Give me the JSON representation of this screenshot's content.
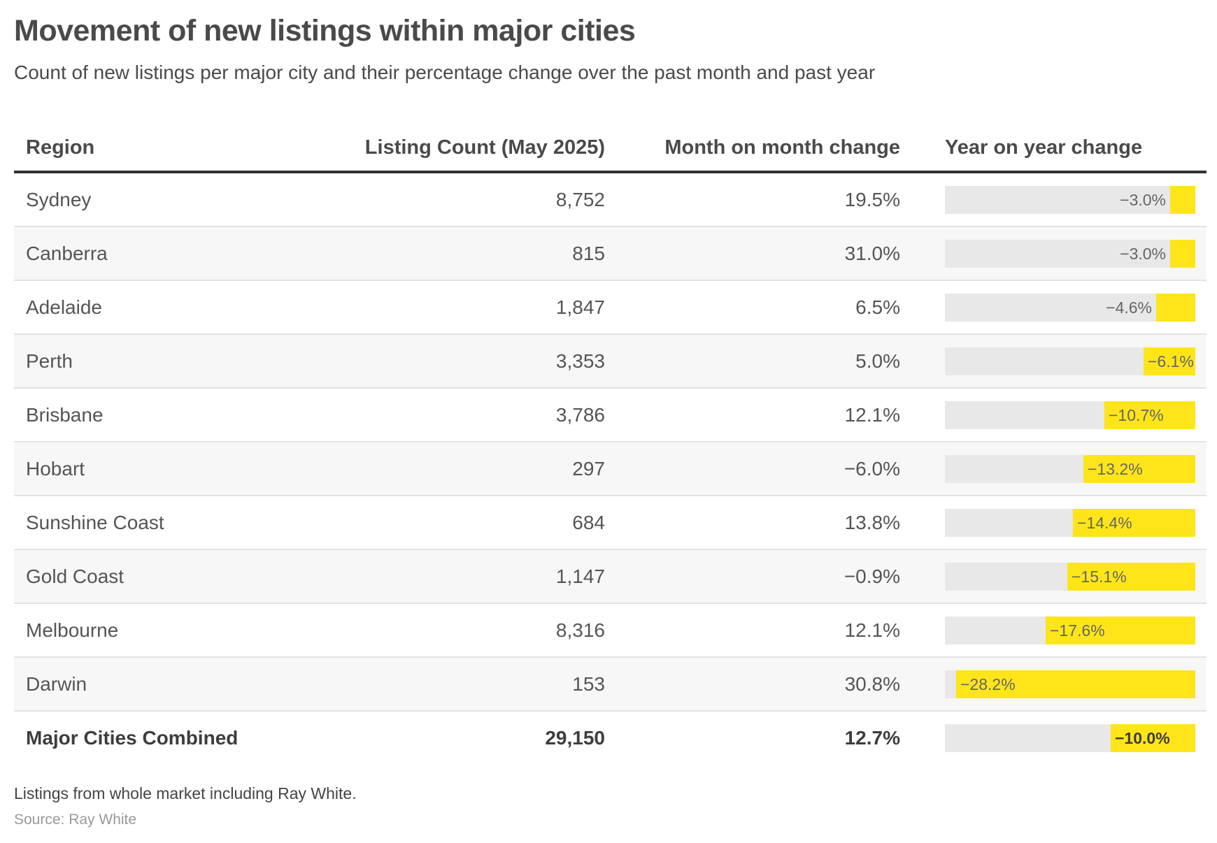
{
  "header": {
    "title": "Movement of new listings within major cities",
    "subtitle": "Count of new listings per major city and their percentage change over the past month and past year"
  },
  "columns": {
    "region": "Region",
    "count": "Listing Count (May 2025)",
    "mom": "Month on month change",
    "yoy": "Year on year change"
  },
  "chart_data": {
    "type": "table",
    "title": "Movement of new listings within major cities",
    "subtitle": "Count of new listings per major city and their percentage change over the past month and past year",
    "rows": [
      {
        "region": "Sydney",
        "count": "8,752",
        "mom": "19.5%",
        "yoy": "−3.0%",
        "yoy_value": -3.0
      },
      {
        "region": "Canberra",
        "count": "815",
        "mom": "31.0%",
        "yoy": "−3.0%",
        "yoy_value": -3.0
      },
      {
        "region": "Adelaide",
        "count": "1,847",
        "mom": "6.5%",
        "yoy": "−4.6%",
        "yoy_value": -4.6
      },
      {
        "region": "Perth",
        "count": "3,353",
        "mom": "5.0%",
        "yoy": "−6.1%",
        "yoy_value": -6.1
      },
      {
        "region": "Brisbane",
        "count": "3,786",
        "mom": "12.1%",
        "yoy": "−10.7%",
        "yoy_value": -10.7
      },
      {
        "region": "Hobart",
        "count": "297",
        "mom": "−6.0%",
        "yoy": "−13.2%",
        "yoy_value": -13.2
      },
      {
        "region": "Sunshine Coast",
        "count": "684",
        "mom": "13.8%",
        "yoy": "−14.4%",
        "yoy_value": -14.4
      },
      {
        "region": "Gold Coast",
        "count": "1,147",
        "mom": "−0.9%",
        "yoy": "−15.1%",
        "yoy_value": -15.1
      },
      {
        "region": "Melbourne",
        "count": "8,316",
        "mom": "12.1%",
        "yoy": "−17.6%",
        "yoy_value": -17.6
      },
      {
        "region": "Darwin",
        "count": "153",
        "mom": "30.8%",
        "yoy": "−28.2%",
        "yoy_value": -28.2
      }
    ],
    "total": {
      "region": "Major Cities Combined",
      "count": "29,150",
      "mom": "12.7%",
      "yoy": "−10.0%",
      "yoy_value": -10.0
    },
    "yoy_bar_range": [
      -29.5,
      0
    ],
    "bar_color": "#fde51a",
    "track_color": "#e8e8e8"
  },
  "footer": {
    "note": "Listings from whole market including Ray White.",
    "source": "Source: Ray White"
  }
}
